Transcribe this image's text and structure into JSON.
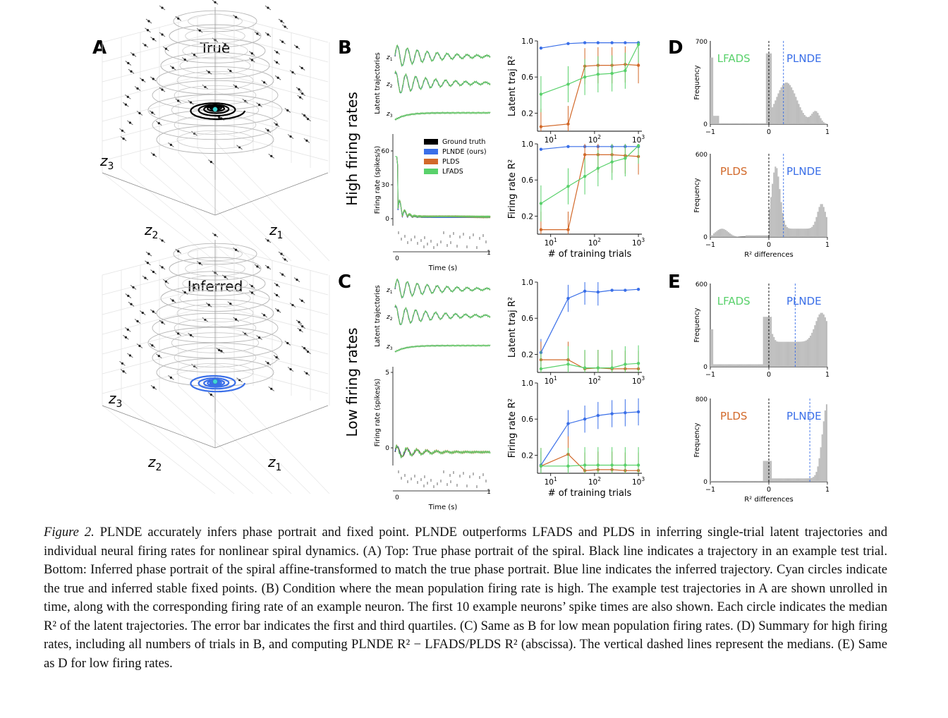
{
  "panels": {
    "A": {
      "letter": "A",
      "top_title": "True",
      "bottom_title": "Inferred",
      "axis_labels": {
        "z1": "z",
        "z1_sub": "1",
        "z2": "z",
        "z2_sub": "2",
        "z3": "z",
        "z3_sub": "3"
      }
    },
    "B": {
      "letter": "B",
      "row_label": "High firing rates"
    },
    "C": {
      "letter": "C",
      "row_label": "Low firing rates"
    },
    "D": {
      "letter": "D"
    },
    "E": {
      "letter": "E"
    }
  },
  "colors": {
    "ground_truth": "#000000",
    "plnde": "#3a6fe8",
    "plds": "#d2692a",
    "lfads": "#59d16b",
    "hist": "#bdbdbd",
    "cyan": "#3fd7d7"
  },
  "labels": {
    "latent_traj_ylabel": "Latent trajectories",
    "firing_ylabel": "Firing rate (spikes/s)",
    "time_xlabel": "Time (s)",
    "latent_r2_ylabel": "Latent traj R²",
    "firing_r2_ylabel": "Firing rate R²",
    "trials_xlabel": "# of training trials",
    "frequency": "Frequency",
    "r2_diff": "R² differences",
    "z1": "z1",
    "z2": "z2",
    "z3": "z3"
  },
  "legend": [
    "Ground truth",
    "PLNDE (ours)",
    "PLDS",
    "LFADS"
  ],
  "chart_data": [
    {
      "type": "line",
      "panel": "B-latent",
      "x": [
        6,
        25,
        60,
        120,
        250,
        500,
        1000
      ],
      "xscale": "log",
      "ylim": [
        0,
        1
      ],
      "yticks": [
        0.2,
        0.6,
        1.0
      ],
      "series": [
        {
          "name": "PLNDE (ours)",
          "values": [
            0.92,
            0.97,
            0.98,
            0.98,
            0.98,
            0.98,
            0.98
          ]
        },
        {
          "name": "PLDS",
          "values": [
            0.05,
            0.08,
            0.72,
            0.73,
            0.73,
            0.74,
            0.73
          ]
        },
        {
          "name": "LFADS",
          "values": [
            0.41,
            0.52,
            0.6,
            0.63,
            0.64,
            0.67,
            0.96
          ]
        }
      ]
    },
    {
      "type": "line",
      "panel": "B-firing",
      "x": [
        6,
        25,
        60,
        120,
        250,
        500,
        1000
      ],
      "xscale": "log",
      "ylim": [
        0,
        1
      ],
      "yticks": [
        0.2,
        0.6,
        1.0
      ],
      "series": [
        {
          "name": "PLNDE (ours)",
          "values": [
            0.94,
            0.97,
            0.97,
            0.97,
            0.97,
            0.97,
            0.97
          ]
        },
        {
          "name": "PLDS",
          "values": [
            0.05,
            0.05,
            0.88,
            0.88,
            0.88,
            0.87,
            0.86
          ]
        },
        {
          "name": "LFADS",
          "values": [
            0.34,
            0.53,
            0.64,
            0.73,
            0.8,
            0.84,
            0.98
          ]
        }
      ]
    },
    {
      "type": "line",
      "panel": "C-latent",
      "x": [
        6,
        25,
        60,
        120,
        250,
        500,
        1000
      ],
      "xscale": "log",
      "ylim": [
        0,
        1
      ],
      "yticks": [
        0.2,
        0.6,
        1.0
      ],
      "series": [
        {
          "name": "PLNDE (ours)",
          "values": [
            0.22,
            0.82,
            0.9,
            0.89,
            0.91,
            0.91,
            0.92
          ]
        },
        {
          "name": "PLDS",
          "values": [
            0.14,
            0.14,
            0.04,
            0.05,
            0.04,
            0.04,
            0.04
          ]
        },
        {
          "name": "LFADS",
          "values": [
            0.04,
            0.09,
            0.05,
            0.05,
            0.05,
            0.09,
            0.1
          ]
        }
      ]
    },
    {
      "type": "line",
      "panel": "C-firing",
      "x": [
        6,
        25,
        60,
        120,
        250,
        500,
        1000
      ],
      "xscale": "log",
      "ylim": [
        0,
        1
      ],
      "yticks": [
        0.2,
        0.6,
        1.0
      ],
      "series": [
        {
          "name": "PLNDE (ours)",
          "values": [
            0.09,
            0.55,
            0.6,
            0.64,
            0.66,
            0.67,
            0.68
          ]
        },
        {
          "name": "PLDS",
          "values": [
            0.08,
            0.21,
            0.03,
            0.04,
            0.04,
            0.03,
            0.03
          ]
        },
        {
          "name": "LFADS",
          "values": [
            0.08,
            0.08,
            0.09,
            0.09,
            0.09,
            0.09,
            0.09
          ]
        }
      ]
    }
  ],
  "ticks": {
    "r2": [
      "0.2",
      "0.6",
      "1.0"
    ],
    "log_x": [
      "10",
      "10",
      "10"
    ],
    "log_x_exp": [
      "1",
      "2",
      "3"
    ],
    "time": [
      "0",
      "1"
    ],
    "hist_x": [
      "−1",
      "0",
      "1"
    ],
    "high_rate_y": [
      "0",
      "30",
      "60"
    ],
    "low_rate_y": [
      "0",
      "5"
    ],
    "D_top_ymax": "700",
    "D_top_y0": "0",
    "D_bot_ymax": "600",
    "D_bot_y0": "0",
    "E_top_ymax": "600",
    "E_top_y0": "0",
    "E_bot_ymax": "800",
    "E_bot_y0": "0"
  },
  "hist_labels": {
    "D_top": [
      "LFADS",
      "PLNDE"
    ],
    "D_bot": [
      "PLDS",
      "PLNDE"
    ],
    "E_top": [
      "LFADS",
      "PLNDE"
    ],
    "E_bot": [
      "PLDS",
      "PLNDE"
    ]
  },
  "caption": {
    "label": "Figure 2.",
    "text": " PLNDE accurately infers phase portrait and fixed point. PLNDE outperforms LFADS and PLDS in inferring single-trial latent trajectories and individual neural firing rates for nonlinear spiral dynamics. (A) Top: True phase portrait of the spiral. Black line indicates a trajectory in an example test trial. Bottom: Inferred phase portrait of the spiral affine-transformed to match the true phase portrait. Blue line indicates the inferred trajectory. Cyan circles indicate the true and inferred stable fixed points. (B) Condition where the mean population firing rate is high. The example test trajectories in A are shown unrolled in time, along with the corresponding firing rate of an example neuron. The first 10 example neurons’ spike times are also shown. Each circle indicates the median R² of the latent trajectories. The error bar indicates the first and third quartiles. (C) Same as B for low mean population firing rates. (D) Summary for high firing rates, including all numbers of trials in B, and computing PLNDE R² − LFADS/PLDS R² (abscissa). The vertical dashed lines represent the medians. (E) Same as D for low firing rates."
  }
}
